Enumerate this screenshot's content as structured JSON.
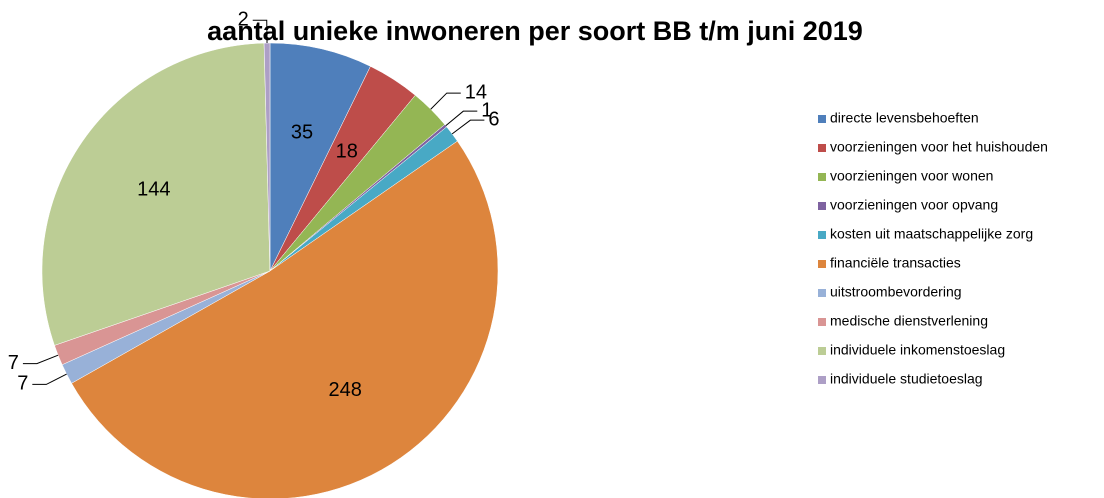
{
  "chart_data": {
    "type": "pie",
    "title": "aantal unieke inwoneren per soort BB t/m juni 2019",
    "categories": [
      "directe levensbehoeften",
      "voorzieningen voor het huishouden",
      "voorzieningen voor wonen",
      "voorzieningen voor opvang",
      "kosten uit maatschappelijke zorg",
      "financiële transacties",
      "uitstroombevordering",
      "medische dienstverlening",
      "individuele inkomenstoeslag",
      "individuele studietoeslag"
    ],
    "values": [
      35,
      18,
      14,
      1,
      6,
      248,
      7,
      7,
      144,
      2
    ],
    "colors": [
      "#4f7fbb",
      "#be4d4a",
      "#94b654",
      "#7e62a0",
      "#48a9c5",
      "#dd853d",
      "#98b1d8",
      "#d99594",
      "#bccd95",
      "#ad9fc6"
    ],
    "legend": "right"
  }
}
